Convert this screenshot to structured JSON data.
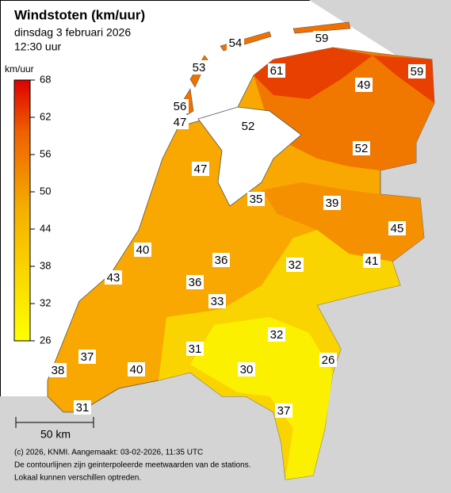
{
  "title": "Windstoten (km/uur)",
  "subtitle": "dinsdag 3 februari 2026",
  "time": "12:30 uur",
  "legend": {
    "unit": "km/uur",
    "ticks": [
      68,
      62,
      56,
      50,
      44,
      38,
      32,
      26
    ],
    "range": [
      26,
      68
    ]
  },
  "stations": [
    54,
    59,
    53,
    61,
    49,
    59,
    56,
    47,
    52,
    52,
    47,
    35,
    39,
    45,
    40,
    36,
    32,
    41,
    43,
    36,
    33,
    32,
    31,
    26,
    37,
    40,
    30,
    38,
    37,
    31
  ],
  "scale_label": "50 km",
  "footer": [
    "(c) 2026, KNMI. Aangemaakt: 03-02-2026, 11:35 UTC",
    "De contourlijnen zijn geinterpoleerde meetwaarden van de stations.",
    "Lokaal kunnen verschillen optreden."
  ]
}
